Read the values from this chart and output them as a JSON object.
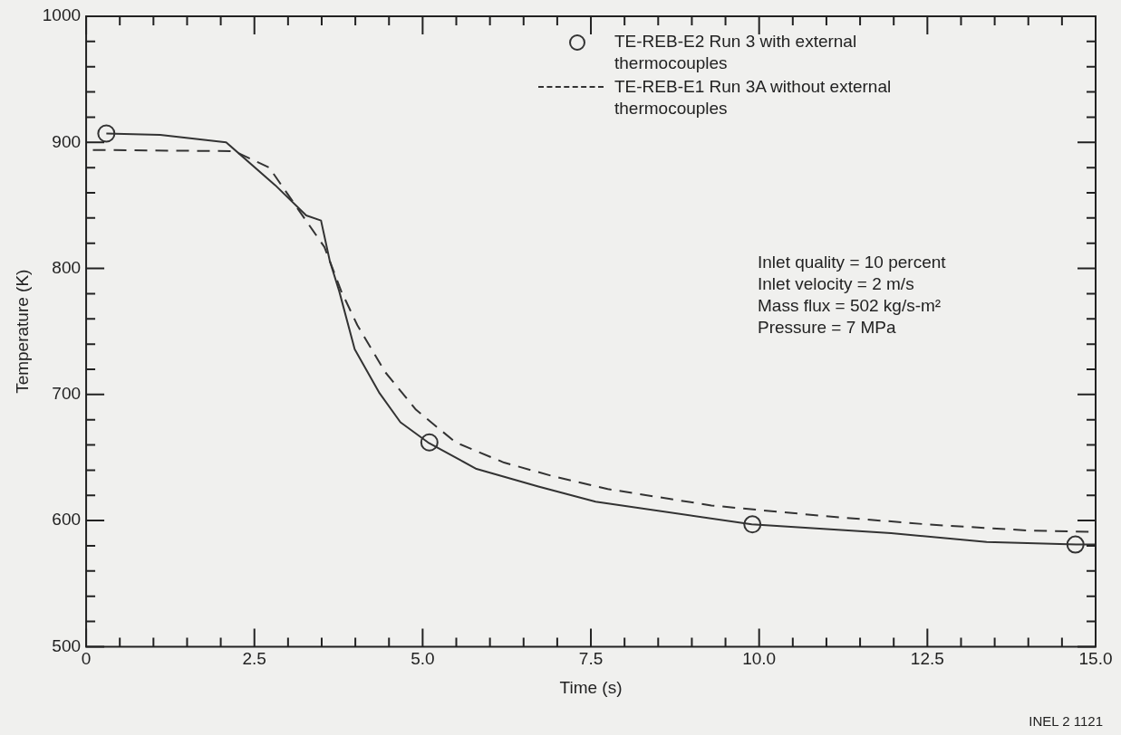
{
  "chart_data": {
    "type": "line",
    "xlabel": "Time (s)",
    "ylabel": "Temperature (K)",
    "xlim": [
      0,
      15
    ],
    "ylim": [
      500,
      1000
    ],
    "xticks": [
      0,
      {
        "value": 0.5,
        "label": null
      },
      {
        "value": 1,
        "label": null
      },
      {
        "value": 1.5,
        "label": null
      },
      {
        "value": 2,
        "label": null
      },
      2.5,
      {
        "value": 3,
        "label": null
      },
      {
        "value": 3.5,
        "label": null
      },
      {
        "value": 4,
        "label": null
      },
      {
        "value": 4.5,
        "label": null
      },
      {
        "value": 5,
        "label": "5.0"
      },
      {
        "value": 5.5,
        "label": null
      },
      {
        "value": 6,
        "label": null
      },
      {
        "value": 6.5,
        "label": null
      },
      {
        "value": 7,
        "label": null
      },
      7.5,
      {
        "value": 8,
        "label": null
      },
      {
        "value": 8.5,
        "label": null
      },
      {
        "value": 9,
        "label": null
      },
      {
        "value": 9.5,
        "label": null
      },
      {
        "value": 10,
        "label": "10.0"
      },
      {
        "value": 10.5,
        "label": null
      },
      {
        "value": 11,
        "label": null
      },
      {
        "value": 11.5,
        "label": null
      },
      {
        "value": 12,
        "label": null
      },
      12.5,
      {
        "value": 13,
        "label": null
      },
      {
        "value": 13.5,
        "label": null
      },
      {
        "value": 14,
        "label": null
      },
      {
        "value": 14.5,
        "label": null
      },
      {
        "value": 15,
        "label": "15.0"
      }
    ],
    "yticks": [
      500,
      {
        "value": 520,
        "label": null
      },
      {
        "value": 540,
        "label": null
      },
      {
        "value": 560,
        "label": null
      },
      {
        "value": 580,
        "label": null
      },
      600,
      {
        "value": 620,
        "label": null
      },
      {
        "value": 640,
        "label": null
      },
      {
        "value": 660,
        "label": null
      },
      {
        "value": 680,
        "label": null
      },
      700,
      {
        "value": 720,
        "label": null
      },
      {
        "value": 740,
        "label": null
      },
      {
        "value": 760,
        "label": null
      },
      {
        "value": 780,
        "label": null
      },
      800,
      {
        "value": 820,
        "label": null
      },
      {
        "value": 840,
        "label": null
      },
      {
        "value": 860,
        "label": null
      },
      {
        "value": 880,
        "label": null
      },
      900,
      {
        "value": 920,
        "label": null
      },
      {
        "value": 940,
        "label": null
      },
      {
        "value": 960,
        "label": null
      },
      {
        "value": 980,
        "label": null
      },
      1000
    ],
    "grid": false,
    "legend": "top right",
    "series": [
      {
        "name": "TE-REB-E2 Run 3 with external thermocouples",
        "type": "scatter",
        "marker": "circle",
        "color": "#333333",
        "x": [
          0.3,
          5.1,
          9.9,
          14.7
        ],
        "values": [
          907,
          662,
          597,
          581
        ]
      },
      {
        "marker": "none",
        "line_style": "solid",
        "color": "#333333",
        "x": [
          0.3,
          1.1,
          2.08,
          2.81,
          3.27,
          3.49,
          3.62,
          3.76,
          3.99,
          4.36,
          4.67,
          5.08,
          5.8,
          6.72,
          7.57,
          9.89,
          11.96,
          13.38,
          14.71,
          15
        ],
        "values": [
          907,
          906,
          900,
          866,
          842,
          838,
          806,
          782,
          736,
          701,
          678,
          662,
          641,
          627,
          615,
          597,
          590,
          583,
          581,
          581
        ]
      },
      {
        "name": "TE-REB-E1 Run 3A without external thermocouples",
        "marker": "none",
        "line_style": "dashed",
        "color": "#333333",
        "x": [
          0.1,
          2.2,
          2.72,
          3.54,
          3.79,
          4.03,
          4.44,
          4.9,
          5.49,
          6.21,
          6.95,
          7.75,
          9.29,
          10.88,
          12.49,
          14.03,
          15
        ],
        "values": [
          894,
          893,
          880,
          817,
          782,
          755,
          718,
          688,
          662,
          646,
          635,
          625,
          612,
          604,
          597,
          592,
          591
        ]
      }
    ],
    "annotations": [
      "Inlet quality = 10 percent",
      "Inlet velocity = 2 m/s",
      "Mass flux = 502 kg/s-m²",
      "Pressure = 7 MPa",
      "INEL 2 1121"
    ]
  }
}
